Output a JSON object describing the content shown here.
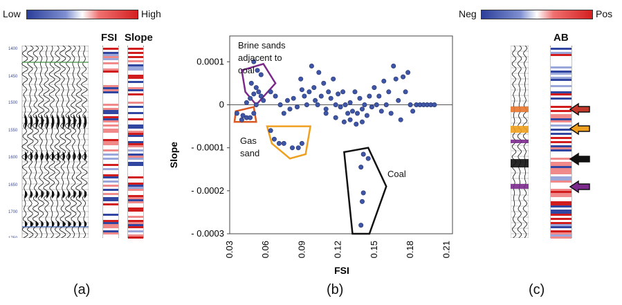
{
  "panel_a": {
    "colorbar": {
      "low_label": "Low",
      "high_label": "High"
    },
    "headers": {
      "fsi": "FSI",
      "slope": "Slope"
    },
    "depth_ticks": [
      "1400",
      "1450",
      "1500",
      "1550",
      "1600",
      "1650",
      "1700",
      "1750"
    ],
    "caption": "(a)"
  },
  "panel_b": {
    "caption": "(b)",
    "annotations": {
      "brine": [
        "Brine sands",
        "adjacent to",
        "coal"
      ],
      "gas": [
        "Gas",
        "sand"
      ],
      "coal": "Coal"
    },
    "colors": {
      "points": "#3f56a6",
      "brine_outline": "#7b2a8c",
      "red_outline": "#d95a23",
      "gas_outline": "#f0a020",
      "coal_outline": "#111111"
    }
  },
  "panel_c": {
    "colorbar": {
      "neg_label": "Neg",
      "pos_label": "Pos"
    },
    "header": "AB",
    "caption": "(c)",
    "colors": {
      "arrow_red": "#c0392b",
      "arrow_orange": "#f0a020",
      "arrow_black": "#111111",
      "arrow_purple": "#7b2a8c"
    }
  },
  "chart_data": {
    "type": "scatter",
    "title": "",
    "xlabel": "FSI",
    "ylabel": "Slope",
    "xlim": [
      0.03,
      0.215
    ],
    "ylim": [
      -0.0003,
      0.00016
    ],
    "x_ticks": [
      0.03,
      0.06,
      0.09,
      0.12,
      0.15,
      0.18,
      0.21
    ],
    "x_tick_labels": [
      "0.03",
      "0.06",
      "0.09",
      "0.12",
      "0.15",
      "0.18",
      "0.21"
    ],
    "y_ticks": [
      0.0001,
      0,
      -0.0001,
      -0.0002,
      -0.0003
    ],
    "y_tick_labels": [
      "0.0001",
      "0",
      "- 0.0001",
      "- 0.0002",
      "- 0.0003"
    ],
    "points": [
      [
        0.05,
        0.0001
      ],
      [
        0.053,
        8e-05
      ],
      [
        0.056,
        7e-05
      ],
      [
        0.048,
        5e-05
      ],
      [
        0.052,
        4e-05
      ],
      [
        0.054,
        3e-05
      ],
      [
        0.05,
        2.5e-05
      ],
      [
        0.047,
        1.5e-05
      ],
      [
        0.056,
        2e-05
      ],
      [
        0.058,
        1e-05
      ],
      [
        0.044,
        5e-06
      ],
      [
        0.052,
        0.0
      ],
      [
        0.036,
        -2e-05
      ],
      [
        0.041,
        -2.5e-05
      ],
      [
        0.044,
        -3e-05
      ],
      [
        0.04,
        -3.5e-05
      ],
      [
        0.047,
        -3e-05
      ],
      [
        0.05,
        -2e-05
      ],
      [
        0.064,
        -6e-05
      ],
      [
        0.067,
        -8e-05
      ],
      [
        0.071,
        -9e-05
      ],
      [
        0.075,
        -9e-05
      ],
      [
        0.082,
        -0.0001
      ],
      [
        0.087,
        -0.0001
      ],
      [
        0.09,
        -9e-05
      ],
      [
        0.064,
        3e-05
      ],
      [
        0.068,
        2e-05
      ],
      [
        0.072,
        0.0
      ],
      [
        0.075,
        -2e-05
      ],
      [
        0.078,
        1e-05
      ],
      [
        0.08,
        -1e-05
      ],
      [
        0.083,
        1.5e-05
      ],
      [
        0.086,
        -5e-06
      ],
      [
        0.089,
        6e-05
      ],
      [
        0.09,
        3.5e-05
      ],
      [
        0.092,
        2e-05
      ],
      [
        0.094,
        0.0
      ],
      [
        0.096,
        3e-05
      ],
      [
        0.098,
        9e-05
      ],
      [
        0.1,
        4e-05
      ],
      [
        0.101,
        1e-05
      ],
      [
        0.103,
        0.0
      ],
      [
        0.104,
        7.5e-05
      ],
      [
        0.106,
        2e-05
      ],
      [
        0.108,
        5e-05
      ],
      [
        0.11,
        -1e-05
      ],
      [
        0.112,
        3e-05
      ],
      [
        0.114,
        1.5e-05
      ],
      [
        0.116,
        6e-05
      ],
      [
        0.118,
        0.0
      ],
      [
        0.12,
        2.5e-05
      ],
      [
        0.122,
        -5e-06
      ],
      [
        0.124,
        3e-05
      ],
      [
        0.126,
        0.0
      ],
      [
        0.128,
        -2e-05
      ],
      [
        0.13,
        5e-06
      ],
      [
        0.132,
        -1.5e-05
      ],
      [
        0.134,
        3e-05
      ],
      [
        0.136,
        -2e-05
      ],
      [
        0.138,
        1.5e-05
      ],
      [
        0.14,
        -1e-05
      ],
      [
        0.142,
        0.0
      ],
      [
        0.144,
        -2.5e-05
      ],
      [
        0.146,
        2e-05
      ],
      [
        0.148,
        -5e-06
      ],
      [
        0.15,
        4e-05
      ],
      [
        0.152,
        0.0
      ],
      [
        0.154,
        2e-05
      ],
      [
        0.156,
        -1.5e-05
      ],
      [
        0.158,
        5.5e-05
      ],
      [
        0.16,
        0.0
      ],
      [
        0.162,
        3e-05
      ],
      [
        0.164,
        -2e-05
      ],
      [
        0.166,
        9e-05
      ],
      [
        0.168,
        6e-05
      ],
      [
        0.17,
        1e-05
      ],
      [
        0.172,
        -3.5e-05
      ],
      [
        0.174,
        6.5e-05
      ],
      [
        0.176,
        3e-05
      ],
      [
        0.178,
        7.5e-05
      ],
      [
        0.18,
        0.0
      ],
      [
        0.182,
        -1.5e-05
      ],
      [
        0.185,
        0.0
      ],
      [
        0.188,
        0.0
      ],
      [
        0.191,
        0.0
      ],
      [
        0.194,
        0.0
      ],
      [
        0.197,
        0.0
      ],
      [
        0.2,
        0.0
      ],
      [
        0.11,
        -2e-05
      ],
      [
        0.118,
        -3e-05
      ],
      [
        0.125,
        -4e-05
      ],
      [
        0.13,
        -3.5e-05
      ],
      [
        0.135,
        -4.5e-05
      ],
      [
        0.14,
        -4e-05
      ],
      [
        0.141,
        -0.000115
      ],
      [
        0.145,
        -0.000125
      ],
      [
        0.139,
        -0.000145
      ],
      [
        0.141,
        -0.000205
      ],
      [
        0.14,
        -0.000225
      ],
      [
        0.139,
        -0.00028
      ]
    ],
    "regions": [
      {
        "name": "brine-sands",
        "points": [
          [
            0.04,
            8e-05
          ],
          [
            0.058,
            9.5e-05
          ],
          [
            0.068,
            5e-05
          ],
          [
            0.052,
            0.0
          ],
          [
            0.043,
            3e-05
          ]
        ]
      },
      {
        "name": "red-cluster",
        "points": [
          [
            0.035,
            -1.5e-05
          ],
          [
            0.05,
            -5e-06
          ],
          [
            0.052,
            -4e-05
          ],
          [
            0.034,
            -4e-05
          ]
        ]
      },
      {
        "name": "gas-sand",
        "points": [
          [
            0.061,
            -5e-05
          ],
          [
            0.097,
            -5e-05
          ],
          [
            0.093,
            -0.000115
          ],
          [
            0.08,
            -0.000125
          ],
          [
            0.065,
            -9e-05
          ]
        ]
      },
      {
        "name": "coal",
        "points": [
          [
            0.125,
            -0.00011
          ],
          [
            0.145,
            -0.0001
          ],
          [
            0.16,
            -0.00019
          ],
          [
            0.146,
            -0.0003
          ],
          [
            0.132,
            -0.0003
          ]
        ]
      }
    ]
  }
}
